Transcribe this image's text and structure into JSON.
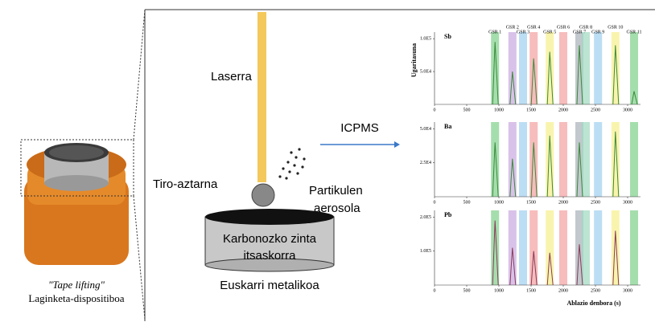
{
  "sample": {
    "caption_italic": "\"Tape lifting\"",
    "caption": "Laginketa-dispositiboa"
  },
  "setup": {
    "laser": "Laserra",
    "residue": "Tiro-aztarna",
    "aerosol_1": "Partikulen",
    "aerosol_2": "aerosola",
    "tape_1": "Karbonozko zinta",
    "tape_2": "itsaskorra",
    "support": "Euskarri metalikoa",
    "instrument": "ICPMS"
  },
  "chart_data": {
    "type": "line",
    "y_label": "Ugaritasuna",
    "x_label": "Ablazio denbora (s)",
    "xlim": [
      0,
      3200
    ],
    "xticks": [
      0,
      500,
      1000,
      1500,
      2000,
      2500,
      3000
    ],
    "bands": [
      {
        "label": "GSR 1",
        "x": 940,
        "color": "#7fd08a"
      },
      {
        "label": "GSR 2",
        "x": 1210,
        "color": "#c9a8e0"
      },
      {
        "label": "GSR 3",
        "x": 1375,
        "color": "#9fd0f0"
      },
      {
        "label": "GSR 4",
        "x": 1540,
        "color": "#f4a0a0"
      },
      {
        "label": "GSR 5",
        "x": 1790,
        "color": "#f6ef8a"
      },
      {
        "label": "GSR 6",
        "x": 2000,
        "color": "#f4a0a0"
      },
      {
        "label": "GSR 7",
        "x": 2250,
        "color": "#a8b0b8"
      },
      {
        "label": "GSR 8",
        "x": 2350,
        "color": "#9fd8c0"
      },
      {
        "label": "GSR 9",
        "x": 2540,
        "color": "#9fd0f0"
      },
      {
        "label": "GSR 10",
        "x": 2810,
        "color": "#f6ef8a"
      },
      {
        "label": "GSR 11",
        "x": 3100,
        "color": "#7fd08a"
      }
    ],
    "panels": [
      {
        "label": "Sb",
        "ylim": [
          0,
          110000
        ],
        "yticks": [
          {
            "value": 50000,
            "label": "5.0E4"
          },
          {
            "value": 100000,
            "label": "1.0E5"
          }
        ],
        "color": "#3a8a3a",
        "x": [
          940,
          1210,
          1540,
          1790,
          2250,
          2810,
          3100
        ],
        "values": [
          95000,
          50000,
          70000,
          80000,
          90000,
          90000,
          20000
        ]
      },
      {
        "label": "Ba",
        "ylim": [
          0,
          55000
        ],
        "yticks": [
          {
            "value": 25000,
            "label": "2.5E4"
          },
          {
            "value": 50000,
            "label": "5.0E4"
          }
        ],
        "color": "#3a8a3a",
        "x": [
          940,
          1210,
          1540,
          1790,
          2250,
          2810
        ],
        "values": [
          40000,
          28000,
          40000,
          45000,
          40000,
          48000
        ]
      },
      {
        "label": "Pb",
        "ylim": [
          0,
          220000
        ],
        "yticks": [
          {
            "value": 100000,
            "label": "1.0E5"
          },
          {
            "value": 200000,
            "label": "2.0E5"
          }
        ],
        "color": "#8a3a5a",
        "x": [
          940,
          1210,
          1540,
          1790,
          2250,
          2810
        ],
        "values": [
          190000,
          110000,
          100000,
          95000,
          120000,
          160000
        ]
      }
    ]
  }
}
